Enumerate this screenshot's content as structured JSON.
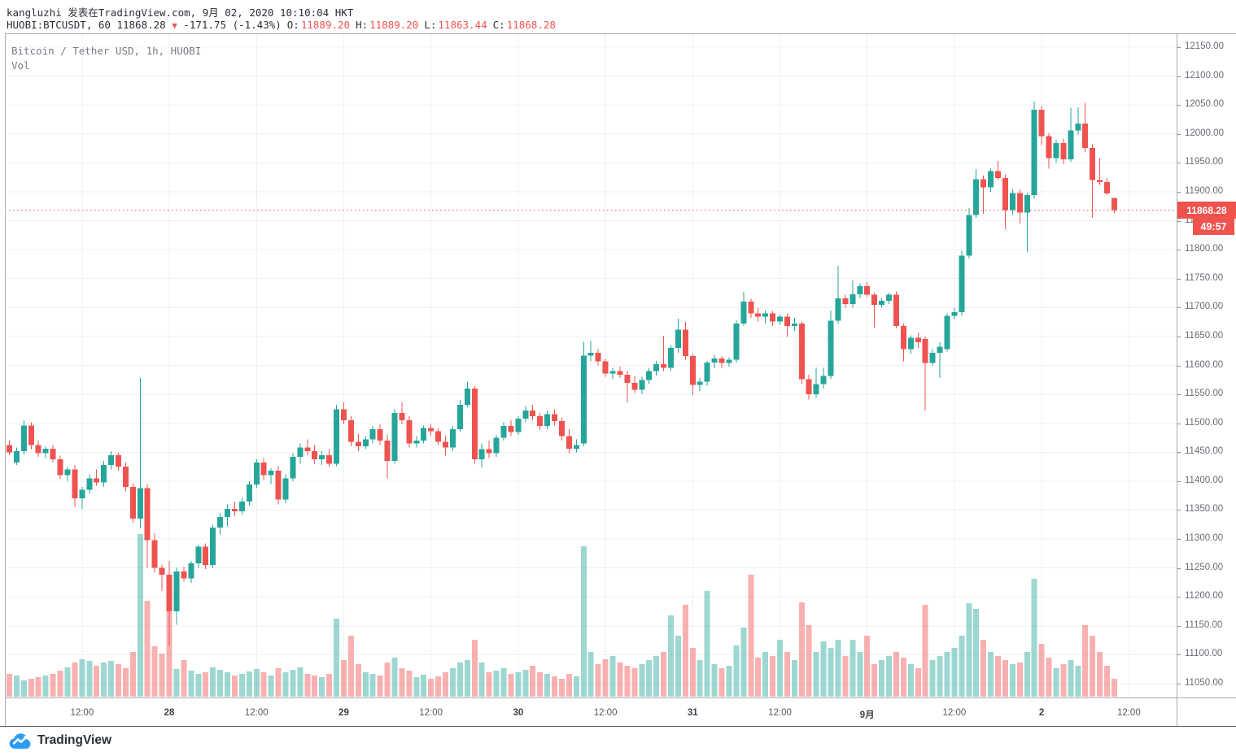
{
  "header": {
    "byline": "kangluzhi 发表在TradingView.com, 9月 02, 2020 10:10:04 HKT",
    "quote": {
      "left": "HUOBI:BTCUSDT, 60 11868.28",
      "arrow": "▼",
      "change": "-171.75 (-1.43%)",
      "ohlc": [
        {
          "label": "O:",
          "value": "11889.20"
        },
        {
          "label": "H:",
          "value": "11889.20"
        },
        {
          "label": "L:",
          "value": "11863.44"
        },
        {
          "label": "C:",
          "value": "11868.28"
        }
      ]
    }
  },
  "legend": {
    "series": "Bitcoin / Tether USD, 1h, HUOBI",
    "volume": "Vol"
  },
  "price_scale": {
    "tag": "11868.28",
    "countdown": "49:57",
    "min": 11050,
    "max": 12150,
    "step": 50,
    "decimals": 2
  },
  "logo": {
    "text": "TradingView"
  },
  "chart_data": {
    "type": "candlestick",
    "title": "Bitcoin / Tether USD, 1h, HUOBI",
    "symbol": "HUOBI:BTCUSDT",
    "interval": "1h",
    "price_line": 11868.28,
    "ylim": [
      11050,
      12150
    ],
    "grid": true,
    "up_color": "#26a69a",
    "down_color": "#ef5350",
    "vol_up_color": "rgba(38,166,154,0.45)",
    "vol_down_color": "rgba(239,83,80,0.45)",
    "grid_color": "#eef0f7",
    "price_line_color": "#ef5350",
    "time_ticks": [
      {
        "i": 10,
        "label": "12:00",
        "bold": false
      },
      {
        "i": 22,
        "label": "28",
        "bold": true
      },
      {
        "i": 34,
        "label": "12:00",
        "bold": false
      },
      {
        "i": 46,
        "label": "29",
        "bold": true
      },
      {
        "i": 58,
        "label": "12:00",
        "bold": false
      },
      {
        "i": 70,
        "label": "30",
        "bold": true
      },
      {
        "i": 82,
        "label": "12:00",
        "bold": false
      },
      {
        "i": 94,
        "label": "31",
        "bold": true
      },
      {
        "i": 106,
        "label": "12:00",
        "bold": false
      },
      {
        "i": 118,
        "label": "9月",
        "bold": true
      },
      {
        "i": 130,
        "label": "12:00",
        "bold": false
      },
      {
        "i": 142,
        "label": "2",
        "bold": true
      },
      {
        "i": 154,
        "label": "12:00",
        "bold": false
      }
    ],
    "candles_format": [
      "open",
      "high",
      "low",
      "close",
      "volume_rel"
    ],
    "candles": [
      [
        11462,
        11470,
        11445,
        11450,
        28
      ],
      [
        11432,
        11458,
        11428,
        11452,
        26
      ],
      [
        11452,
        11505,
        11446,
        11496,
        20
      ],
      [
        11496,
        11502,
        11455,
        11462,
        22
      ],
      [
        11462,
        11470,
        11442,
        11448,
        24
      ],
      [
        11448,
        11460,
        11440,
        11456,
        26
      ],
      [
        11456,
        11462,
        11432,
        11438,
        28
      ],
      [
        11438,
        11444,
        11404,
        11410,
        32
      ],
      [
        11410,
        11425,
        11400,
        11420,
        36
      ],
      [
        11420,
        11428,
        11355,
        11370,
        42
      ],
      [
        11370,
        11390,
        11352,
        11385,
        46
      ],
      [
        11385,
        11412,
        11378,
        11405,
        44
      ],
      [
        11405,
        11420,
        11392,
        11398,
        38
      ],
      [
        11398,
        11435,
        11390,
        11428,
        42
      ],
      [
        11428,
        11452,
        11420,
        11445,
        44
      ],
      [
        11445,
        11450,
        11418,
        11425,
        40
      ],
      [
        11425,
        11432,
        11382,
        11390,
        35
      ],
      [
        11390,
        11396,
        11328,
        11335,
        55
      ],
      [
        11335,
        11578,
        11318,
        11388,
        200
      ],
      [
        11388,
        11395,
        11250,
        11298,
        118
      ],
      [
        11298,
        11310,
        11242,
        11250,
        62
      ],
      [
        11250,
        11256,
        11210,
        11238,
        53
      ],
      [
        11238,
        11262,
        11115,
        11175,
        106
      ],
      [
        11175,
        11250,
        11152,
        11244,
        34
      ],
      [
        11244,
        11252,
        11226,
        11232,
        45
      ],
      [
        11232,
        11262,
        11224,
        11258,
        32
      ],
      [
        11258,
        11290,
        11250,
        11287,
        28
      ],
      [
        11287,
        11292,
        11248,
        11255,
        30
      ],
      [
        11255,
        11325,
        11250,
        11320,
        36
      ],
      [
        11320,
        11345,
        11308,
        11338,
        33
      ],
      [
        11338,
        11360,
        11322,
        11352,
        30
      ],
      [
        11352,
        11365,
        11340,
        11348,
        26
      ],
      [
        11348,
        11372,
        11342,
        11365,
        28
      ],
      [
        11365,
        11400,
        11358,
        11394,
        31
      ],
      [
        11394,
        11438,
        11388,
        11432,
        34
      ],
      [
        11432,
        11440,
        11402,
        11410,
        30
      ],
      [
        11410,
        11422,
        11395,
        11418,
        26
      ],
      [
        11418,
        11426,
        11360,
        11368,
        35
      ],
      [
        11368,
        11412,
        11362,
        11405,
        30
      ],
      [
        11405,
        11448,
        11400,
        11442,
        33
      ],
      [
        11442,
        11465,
        11430,
        11458,
        36
      ],
      [
        11458,
        11472,
        11445,
        11452,
        28
      ],
      [
        11452,
        11462,
        11430,
        11438,
        26
      ],
      [
        11438,
        11452,
        11428,
        11445,
        24
      ],
      [
        11445,
        11455,
        11425,
        11430,
        28
      ],
      [
        11430,
        11532,
        11426,
        11524,
        96
      ],
      [
        11524,
        11536,
        11498,
        11505,
        45
      ],
      [
        11505,
        11512,
        11460,
        11468,
        75
      ],
      [
        11468,
        11482,
        11452,
        11460,
        40
      ],
      [
        11460,
        11478,
        11455,
        11472,
        30
      ],
      [
        11472,
        11495,
        11465,
        11490,
        28
      ],
      [
        11490,
        11498,
        11462,
        11470,
        26
      ],
      [
        11470,
        11480,
        11405,
        11435,
        42
      ],
      [
        11435,
        11525,
        11430,
        11518,
        48
      ],
      [
        11518,
        11536,
        11498,
        11505,
        35
      ],
      [
        11505,
        11512,
        11458,
        11465,
        32
      ],
      [
        11465,
        11478,
        11458,
        11470,
        24
      ],
      [
        11470,
        11496,
        11465,
        11492,
        27
      ],
      [
        11492,
        11498,
        11478,
        11486,
        22
      ],
      [
        11486,
        11492,
        11462,
        11468,
        25
      ],
      [
        11468,
        11478,
        11444,
        11458,
        30
      ],
      [
        11458,
        11495,
        11452,
        11490,
        35
      ],
      [
        11490,
        11540,
        11485,
        11532,
        42
      ],
      [
        11532,
        11572,
        11528,
        11560,
        45
      ],
      [
        11560,
        11564,
        11430,
        11438,
        70
      ],
      [
        11438,
        11465,
        11424,
        11455,
        42
      ],
      [
        11455,
        11470,
        11440,
        11448,
        30
      ],
      [
        11448,
        11480,
        11442,
        11475,
        32
      ],
      [
        11475,
        11502,
        11470,
        11495,
        35
      ],
      [
        11495,
        11505,
        11478,
        11485,
        28
      ],
      [
        11485,
        11512,
        11480,
        11508,
        30
      ],
      [
        11508,
        11530,
        11502,
        11522,
        33
      ],
      [
        11522,
        11532,
        11505,
        11512,
        38
      ],
      [
        11512,
        11518,
        11488,
        11495,
        30
      ],
      [
        11495,
        11522,
        11490,
        11516,
        28
      ],
      [
        11516,
        11524,
        11496,
        11504,
        25
      ],
      [
        11504,
        11510,
        11470,
        11478,
        22
      ],
      [
        11478,
        11490,
        11448,
        11456,
        28
      ],
      [
        11456,
        11472,
        11450,
        11462,
        25
      ],
      [
        11465,
        11641,
        11460,
        11617,
        185
      ],
      [
        11617,
        11643,
        11608,
        11622,
        55
      ],
      [
        11622,
        11628,
        11600,
        11607,
        40
      ],
      [
        11607,
        11612,
        11580,
        11586,
        46
      ],
      [
        11586,
        11596,
        11576,
        11590,
        50
      ],
      [
        11590,
        11598,
        11578,
        11584,
        42
      ],
      [
        11584,
        11590,
        11536,
        11570,
        38
      ],
      [
        11570,
        11582,
        11552,
        11558,
        35
      ],
      [
        11558,
        11580,
        11550,
        11575,
        40
      ],
      [
        11575,
        11596,
        11568,
        11590,
        45
      ],
      [
        11590,
        11608,
        11582,
        11602,
        50
      ],
      [
        11602,
        11651,
        11590,
        11596,
        55
      ],
      [
        11596,
        11635,
        11590,
        11630,
        100
      ],
      [
        11630,
        11681,
        11622,
        11662,
        75
      ],
      [
        11662,
        11675,
        11610,
        11616,
        113
      ],
      [
        11616,
        11620,
        11549,
        11566,
        60
      ],
      [
        11566,
        11578,
        11556,
        11572,
        45
      ],
      [
        11572,
        11608,
        11565,
        11605,
        130
      ],
      [
        11605,
        11618,
        11595,
        11612,
        40
      ],
      [
        11612,
        11616,
        11596,
        11604,
        35
      ],
      [
        11604,
        11614,
        11598,
        11610,
        38
      ],
      [
        11610,
        11678,
        11605,
        11672,
        63
      ],
      [
        11672,
        11727,
        11668,
        11710,
        85
      ],
      [
        11710,
        11715,
        11682,
        11690,
        150
      ],
      [
        11690,
        11700,
        11676,
        11684,
        48
      ],
      [
        11684,
        11695,
        11672,
        11690,
        55
      ],
      [
        11690,
        11694,
        11668,
        11676,
        50
      ],
      [
        11676,
        11688,
        11670,
        11684,
        70
      ],
      [
        11684,
        11690,
        11649,
        11668,
        55
      ],
      [
        11668,
        11682,
        11660,
        11672,
        45
      ],
      [
        11672,
        11676,
        11568,
        11576,
        116
      ],
      [
        11576,
        11584,
        11541,
        11550,
        88
      ],
      [
        11550,
        11596,
        11544,
        11568,
        55
      ],
      [
        11568,
        11596,
        11560,
        11582,
        68
      ],
      [
        11582,
        11695,
        11576,
        11677,
        60
      ],
      [
        11677,
        11772,
        11672,
        11716,
        70
      ],
      [
        11716,
        11722,
        11700,
        11706,
        50
      ],
      [
        11706,
        11747,
        11700,
        11723,
        70
      ],
      [
        11723,
        11742,
        11716,
        11737,
        55
      ],
      [
        11737,
        11744,
        11718,
        11722,
        75
      ],
      [
        11722,
        11726,
        11665,
        11705,
        40
      ],
      [
        11705,
        11716,
        11700,
        11712,
        45
      ],
      [
        11712,
        11726,
        11706,
        11722,
        50
      ],
      [
        11722,
        11728,
        11664,
        11668,
        55
      ],
      [
        11668,
        11672,
        11607,
        11628,
        48
      ],
      [
        11628,
        11652,
        11620,
        11648,
        40
      ],
      [
        11648,
        11656,
        11630,
        11640,
        35
      ],
      [
        11646,
        11650,
        11522,
        11604,
        113
      ],
      [
        11604,
        11628,
        11600,
        11622,
        45
      ],
      [
        11622,
        11640,
        11578,
        11632,
        50
      ],
      [
        11628,
        11690,
        11624,
        11686,
        55
      ],
      [
        11686,
        11700,
        11680,
        11692,
        60
      ],
      [
        11692,
        11798,
        11686,
        11790,
        75
      ],
      [
        11790,
        11872,
        11785,
        11860,
        115
      ],
      [
        11860,
        11939,
        11855,
        11922,
        108
      ],
      [
        11922,
        11928,
        11862,
        11908,
        70
      ],
      [
        11908,
        11940,
        11900,
        11936,
        55
      ],
      [
        11936,
        11953,
        11920,
        11924,
        50
      ],
      [
        11924,
        11930,
        11835,
        11868,
        45
      ],
      [
        11868,
        11905,
        11860,
        11898,
        40
      ],
      [
        11898,
        11904,
        11845,
        11864,
        42
      ],
      [
        11864,
        11898,
        11796,
        11894,
        55
      ],
      [
        11894,
        12056,
        11888,
        12042,
        145
      ],
      [
        12042,
        12048,
        11981,
        11996,
        65
      ],
      [
        11996,
        12002,
        11940,
        11958,
        48
      ],
      [
        11958,
        11990,
        11950,
        11984,
        35
      ],
      [
        11984,
        11992,
        11948,
        11956,
        40
      ],
      [
        11956,
        12045,
        11952,
        12006,
        45
      ],
      [
        12006,
        12046,
        11998,
        12018,
        38
      ],
      [
        12018,
        12054,
        11968,
        11976,
        88
      ],
      [
        11976,
        11982,
        11856,
        11920,
        75
      ],
      [
        11920,
        11958,
        11912,
        11917,
        55
      ],
      [
        11917,
        11924,
        11894,
        11897,
        38
      ],
      [
        11889.2,
        11889.2,
        11863.44,
        11868.28,
        22
      ]
    ]
  }
}
